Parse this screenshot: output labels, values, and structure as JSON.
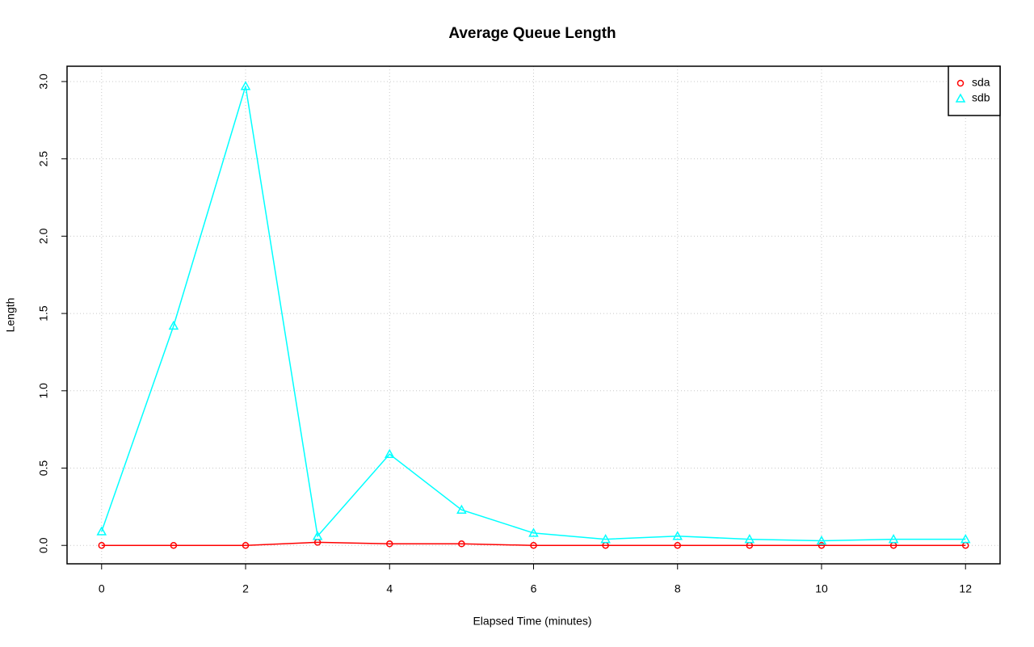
{
  "chart_data": {
    "type": "line",
    "title": "Average Queue Length",
    "x_label": "Elapsed Time (minutes)",
    "y_label": "Length",
    "x": [
      0,
      1,
      2,
      3,
      4,
      5,
      6,
      7,
      8,
      9,
      10,
      11,
      12
    ],
    "series": [
      {
        "name": "sda",
        "color": "#ff0000",
        "marker": "circle",
        "values": [
          0,
          0,
          0,
          0.02,
          0.01,
          0.01,
          0,
          0,
          0,
          0,
          0,
          0,
          0
        ]
      },
      {
        "name": "sdb",
        "color": "#00ffff",
        "marker": "triangle",
        "values": [
          0.09,
          1.42,
          2.97,
          0.06,
          0.59,
          0.23,
          0.08,
          0.04,
          0.06,
          0.04,
          0.03,
          0.04,
          0.04
        ]
      }
    ],
    "xlim": [
      -0.48,
      12.48
    ],
    "xticks": [
      0,
      2,
      4,
      6,
      8,
      10,
      12
    ],
    "ylim": [
      -0.119,
      3.099
    ],
    "yticks": [
      {
        "value": 0,
        "label": "0.0"
      },
      0.5,
      {
        "value": 1,
        "label": "1.0"
      },
      1.5,
      {
        "value": 2,
        "label": "2.0"
      },
      2.5,
      {
        "value": 3,
        "label": "3.0"
      }
    ],
    "grid": true,
    "legend": "top-right"
  }
}
